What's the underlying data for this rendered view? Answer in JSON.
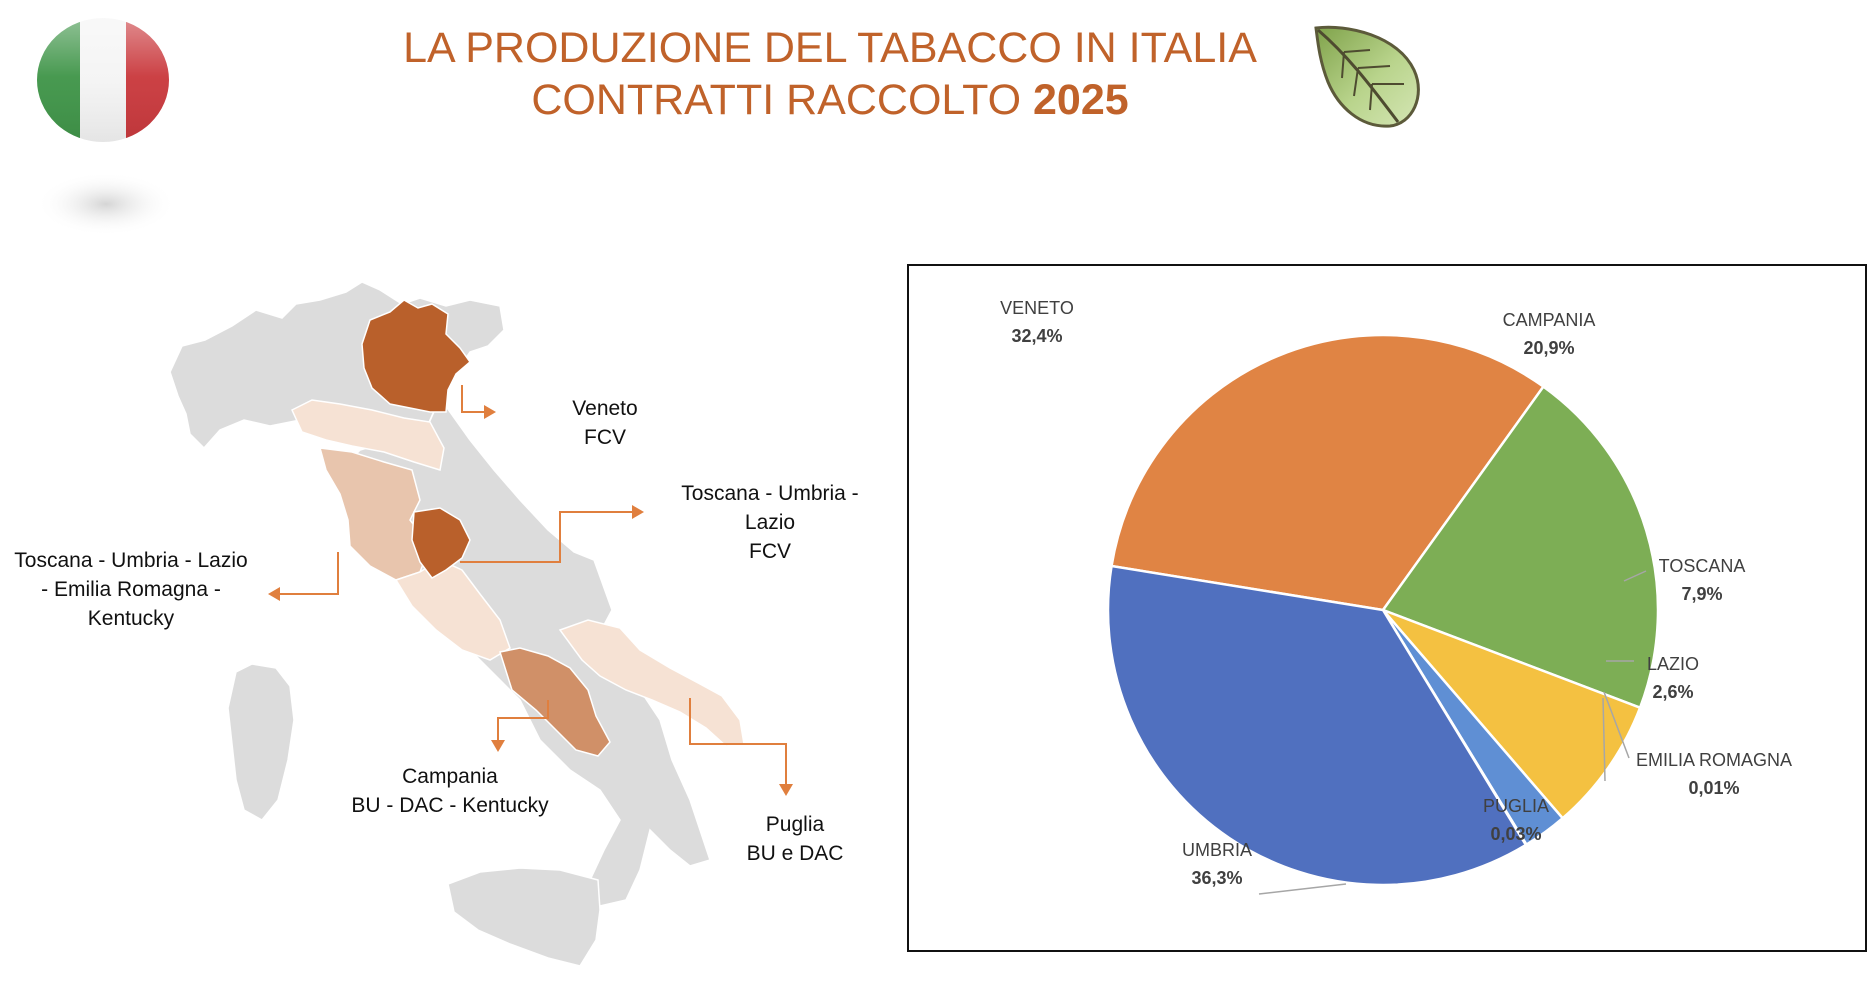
{
  "title": {
    "line1": "LA PRODUZIONE DEL TABACCO IN ITALIA",
    "line2_prefix": "CONTRATTI RACCOLTO ",
    "line2_year": "2025"
  },
  "map_labels": {
    "veneto": [
      "Veneto",
      "FCV"
    ],
    "central_fcv": [
      "Toscana - Umbria -",
      "Lazio",
      "FCV"
    ],
    "central_kentucky": [
      "Toscana - Umbria - Lazio",
      "- Emilia Romagna -",
      "Kentucky"
    ],
    "campania": [
      "Campania",
      "BU - DAC - Kentucky"
    ],
    "puglia": [
      "Puglia",
      "BU e DAC"
    ]
  },
  "colors": {
    "title": "#C0622A",
    "map_gray": "#DCDCDC",
    "map_dark": "#B9602B",
    "map_mid": "#D09068",
    "map_light": "#E8C5AD",
    "map_pale": "#F6E2D4",
    "arrow": "#E07F3E"
  },
  "icons": [
    "italy-flag-icon",
    "tobacco-leaf-icon"
  ],
  "chart_data": {
    "type": "pie",
    "slices": [
      {
        "name": "VENETO",
        "value": 32.4,
        "label": "32,4%",
        "color": "#E08444"
      },
      {
        "name": "CAMPANIA",
        "value": 20.9,
        "label": "20,9%",
        "color": "#7DAE55"
      },
      {
        "name": "TOSCANA",
        "value": 7.9,
        "label": "7,9%",
        "color": "#F4C141"
      },
      {
        "name": "LAZIO",
        "value": 2.6,
        "label": "2,6%",
        "color": "#5F8FD4"
      },
      {
        "name": "EMILIA ROMAGNA",
        "value": 0.01,
        "label": "0,01%",
        "color": "#A5A5A5"
      },
      {
        "name": "PUGLIA",
        "value": 0.03,
        "label": "0,03%",
        "color": "#264478"
      },
      {
        "name": "UMBRIA",
        "value": 36.3,
        "label": "36,3%",
        "color": "#5070BF"
      }
    ]
  }
}
